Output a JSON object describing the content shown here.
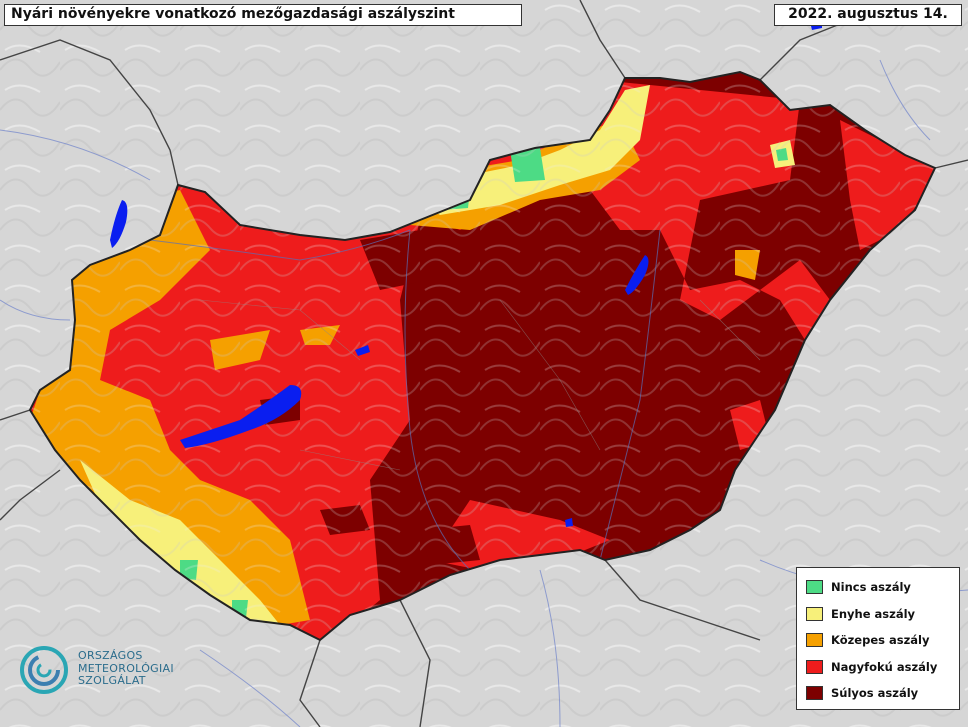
{
  "title": "Nyári növényekre vonatkozó mezőgazdasági aszályszint",
  "date": "2022. augusztus 14.",
  "legend": {
    "items": [
      {
        "label": "Nincs aszály",
        "color": "#4ddb85"
      },
      {
        "label": "Enyhe aszály",
        "color": "#f7f07a"
      },
      {
        "label": "Közepes aszály",
        "color": "#f5a000"
      },
      {
        "label": "Nagyfokú aszály",
        "color": "#ee1c1c"
      },
      {
        "label": "Súlyos aszály",
        "color": "#7d0000"
      }
    ]
  },
  "logo": {
    "line1": "ORSZÁGOS",
    "line2": "METEOROLÓGIAI",
    "line3": "SZOLGÁLAT",
    "icon": "omsz-swirl-icon"
  },
  "colors": {
    "background": "#d9d9d9",
    "water": "#0a1ef0",
    "river": "#7a8ccc",
    "border": "#333333"
  }
}
